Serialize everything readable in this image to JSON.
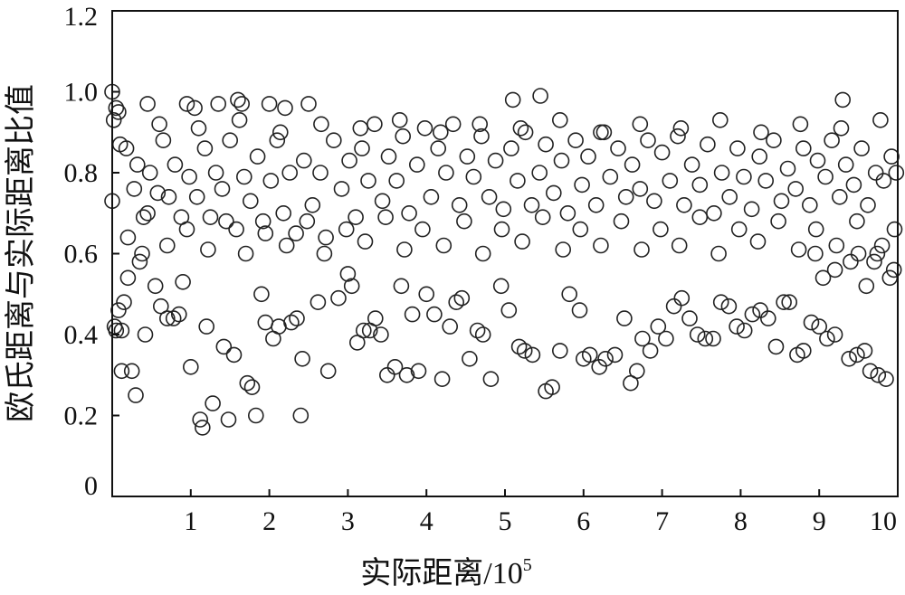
{
  "chart_data": {
    "type": "scatter",
    "xlabel": "实际距离/10",
    "xlabel_sup": "5",
    "ylabel": "欧氏距离与实际距离比值",
    "xlim": [
      0,
      10
    ],
    "ylim": [
      0,
      1.2
    ],
    "xticks": [
      "1",
      "2",
      "3",
      "4",
      "5",
      "6",
      "7",
      "8",
      "9",
      "10"
    ],
    "yticks": [
      "0",
      "0.2",
      "0.4",
      "0.6",
      "0.8",
      "1.0",
      "1.2"
    ],
    "marker": "open-circle",
    "marker_color": "#222222",
    "grid": false,
    "series": [
      {
        "points": [
          [
            0.0,
            1.0
          ],
          [
            0.02,
            0.93
          ],
          [
            0.05,
            0.96
          ],
          [
            0.08,
            0.95
          ],
          [
            0.0,
            0.73
          ],
          [
            0.03,
            0.42
          ],
          [
            0.05,
            0.41
          ],
          [
            0.08,
            0.46
          ],
          [
            0.12,
            0.41
          ],
          [
            0.15,
            0.48
          ],
          [
            0.12,
            0.31
          ],
          [
            0.25,
            0.31
          ],
          [
            0.3,
            0.25
          ],
          [
            0.2,
            0.54
          ],
          [
            0.35,
            0.58
          ],
          [
            0.42,
            0.4
          ],
          [
            0.45,
            0.97
          ],
          [
            0.38,
            0.6
          ],
          [
            0.55,
            0.52
          ],
          [
            0.62,
            0.47
          ],
          [
            0.7,
            0.44
          ],
          [
            0.78,
            0.44
          ],
          [
            0.85,
            0.45
          ],
          [
            0.9,
            0.53
          ],
          [
            0.95,
            0.97
          ],
          [
            1.0,
            0.32
          ],
          [
            1.05,
            0.96
          ],
          [
            1.12,
            0.19
          ],
          [
            1.15,
            0.17
          ],
          [
            1.2,
            0.42
          ],
          [
            1.28,
            0.23
          ],
          [
            1.35,
            0.97
          ],
          [
            1.42,
            0.37
          ],
          [
            1.48,
            0.19
          ],
          [
            1.55,
            0.35
          ],
          [
            1.6,
            0.98
          ],
          [
            1.65,
            0.97
          ],
          [
            1.72,
            0.28
          ],
          [
            1.78,
            0.27
          ],
          [
            1.83,
            0.2
          ],
          [
            1.9,
            0.5
          ],
          [
            1.95,
            0.43
          ],
          [
            2.0,
            0.97
          ],
          [
            2.05,
            0.39
          ],
          [
            2.12,
            0.42
          ],
          [
            2.2,
            0.96
          ],
          [
            2.28,
            0.43
          ],
          [
            2.35,
            0.44
          ],
          [
            2.4,
            0.2
          ],
          [
            2.42,
            0.34
          ],
          [
            2.5,
            0.97
          ],
          [
            2.62,
            0.48
          ],
          [
            2.75,
            0.31
          ],
          [
            2.88,
            0.49
          ],
          [
            3.0,
            0.55
          ],
          [
            3.05,
            0.52
          ],
          [
            3.12,
            0.38
          ],
          [
            3.2,
            0.41
          ],
          [
            3.28,
            0.41
          ],
          [
            3.35,
            0.44
          ],
          [
            3.42,
            0.4
          ],
          [
            3.5,
            0.3
          ],
          [
            3.6,
            0.32
          ],
          [
            3.68,
            0.52
          ],
          [
            3.75,
            0.3
          ],
          [
            3.82,
            0.45
          ],
          [
            3.9,
            0.31
          ],
          [
            4.0,
            0.5
          ],
          [
            4.1,
            0.45
          ],
          [
            4.2,
            0.29
          ],
          [
            4.3,
            0.42
          ],
          [
            4.38,
            0.48
          ],
          [
            4.45,
            0.49
          ],
          [
            4.55,
            0.34
          ],
          [
            4.65,
            0.41
          ],
          [
            4.72,
            0.4
          ],
          [
            4.82,
            0.29
          ],
          [
            4.95,
            0.52
          ],
          [
            5.05,
            0.46
          ],
          [
            5.1,
            0.98
          ],
          [
            5.18,
            0.37
          ],
          [
            5.25,
            0.36
          ],
          [
            5.35,
            0.35
          ],
          [
            5.45,
            0.99
          ],
          [
            5.52,
            0.26
          ],
          [
            5.6,
            0.27
          ],
          [
            5.7,
            0.36
          ],
          [
            5.82,
            0.5
          ],
          [
            5.95,
            0.46
          ],
          [
            6.0,
            0.34
          ],
          [
            6.08,
            0.35
          ],
          [
            6.2,
            0.32
          ],
          [
            6.28,
            0.34
          ],
          [
            6.4,
            0.35
          ],
          [
            6.52,
            0.44
          ],
          [
            6.6,
            0.28
          ],
          [
            6.68,
            0.31
          ],
          [
            6.75,
            0.39
          ],
          [
            6.85,
            0.36
          ],
          [
            6.95,
            0.42
          ],
          [
            7.05,
            0.39
          ],
          [
            7.15,
            0.47
          ],
          [
            7.25,
            0.49
          ],
          [
            7.35,
            0.44
          ],
          [
            7.45,
            0.4
          ],
          [
            7.55,
            0.39
          ],
          [
            7.65,
            0.39
          ],
          [
            7.75,
            0.48
          ],
          [
            7.85,
            0.47
          ],
          [
            7.95,
            0.42
          ],
          [
            8.05,
            0.41
          ],
          [
            8.15,
            0.45
          ],
          [
            8.25,
            0.46
          ],
          [
            8.35,
            0.44
          ],
          [
            8.45,
            0.37
          ],
          [
            8.55,
            0.48
          ],
          [
            8.62,
            0.48
          ],
          [
            8.72,
            0.35
          ],
          [
            8.8,
            0.36
          ],
          [
            8.9,
            0.43
          ],
          [
            9.0,
            0.42
          ],
          [
            9.1,
            0.39
          ],
          [
            9.2,
            0.4
          ],
          [
            9.3,
            0.98
          ],
          [
            9.38,
            0.34
          ],
          [
            9.48,
            0.35
          ],
          [
            9.58,
            0.36
          ],
          [
            9.65,
            0.31
          ],
          [
            9.75,
            0.3
          ],
          [
            9.85,
            0.29
          ],
          [
            9.95,
            0.56
          ],
          [
            9.9,
            0.54
          ],
          [
            9.8,
            0.62
          ],
          [
            9.7,
            0.58
          ],
          [
            9.6,
            0.52
          ],
          [
            9.5,
            0.6
          ],
          [
            9.4,
            0.58
          ],
          [
            9.2,
            0.56
          ],
          [
            9.05,
            0.54
          ],
          [
            8.95,
            0.6
          ],
          [
            0.1,
            0.87
          ],
          [
            0.18,
            0.86
          ],
          [
            0.28,
            0.76
          ],
          [
            0.32,
            0.82
          ],
          [
            0.4,
            0.69
          ],
          [
            0.48,
            0.8
          ],
          [
            0.58,
            0.75
          ],
          [
            0.65,
            0.88
          ],
          [
            0.72,
            0.74
          ],
          [
            0.8,
            0.82
          ],
          [
            0.88,
            0.69
          ],
          [
            0.98,
            0.79
          ],
          [
            1.08,
            0.74
          ],
          [
            1.18,
            0.86
          ],
          [
            1.25,
            0.69
          ],
          [
            1.32,
            0.8
          ],
          [
            1.4,
            0.76
          ],
          [
            1.5,
            0.88
          ],
          [
            1.58,
            0.66
          ],
          [
            1.68,
            0.79
          ],
          [
            1.76,
            0.73
          ],
          [
            1.85,
            0.84
          ],
          [
            1.92,
            0.68
          ],
          [
            2.02,
            0.78
          ],
          [
            2.1,
            0.88
          ],
          [
            2.18,
            0.7
          ],
          [
            2.26,
            0.8
          ],
          [
            2.34,
            0.65
          ],
          [
            2.44,
            0.83
          ],
          [
            2.55,
            0.72
          ],
          [
            2.65,
            0.8
          ],
          [
            2.72,
            0.64
          ],
          [
            2.82,
            0.88
          ],
          [
            2.92,
            0.76
          ],
          [
            3.02,
            0.83
          ],
          [
            3.1,
            0.69
          ],
          [
            3.18,
            0.86
          ],
          [
            3.26,
            0.78
          ],
          [
            3.34,
            0.92
          ],
          [
            3.44,
            0.73
          ],
          [
            3.52,
            0.84
          ],
          [
            3.62,
            0.78
          ],
          [
            3.7,
            0.89
          ],
          [
            3.78,
            0.7
          ],
          [
            3.88,
            0.82
          ],
          [
            3.98,
            0.91
          ],
          [
            4.06,
            0.74
          ],
          [
            4.15,
            0.86
          ],
          [
            4.25,
            0.8
          ],
          [
            4.34,
            0.92
          ],
          [
            4.42,
            0.72
          ],
          [
            4.52,
            0.84
          ],
          [
            4.6,
            0.79
          ],
          [
            4.7,
            0.89
          ],
          [
            4.8,
            0.74
          ],
          [
            4.88,
            0.83
          ],
          [
            4.98,
            0.71
          ],
          [
            5.08,
            0.86
          ],
          [
            5.16,
            0.78
          ],
          [
            5.26,
            0.9
          ],
          [
            5.34,
            0.72
          ],
          [
            5.44,
            0.8
          ],
          [
            5.52,
            0.87
          ],
          [
            5.62,
            0.75
          ],
          [
            5.72,
            0.83
          ],
          [
            5.8,
            0.7
          ],
          [
            5.9,
            0.88
          ],
          [
            5.98,
            0.77
          ],
          [
            6.06,
            0.84
          ],
          [
            6.16,
            0.72
          ],
          [
            6.26,
            0.9
          ],
          [
            6.34,
            0.79
          ],
          [
            6.44,
            0.86
          ],
          [
            6.54,
            0.74
          ],
          [
            6.62,
            0.82
          ],
          [
            6.72,
            0.76
          ],
          [
            6.82,
            0.88
          ],
          [
            6.9,
            0.73
          ],
          [
            7.0,
            0.85
          ],
          [
            7.1,
            0.78
          ],
          [
            7.2,
            0.89
          ],
          [
            7.28,
            0.72
          ],
          [
            7.38,
            0.82
          ],
          [
            7.48,
            0.77
          ],
          [
            7.58,
            0.87
          ],
          [
            7.66,
            0.7
          ],
          [
            7.76,
            0.8
          ],
          [
            7.86,
            0.74
          ],
          [
            7.96,
            0.86
          ],
          [
            8.04,
            0.79
          ],
          [
            8.14,
            0.71
          ],
          [
            8.24,
            0.84
          ],
          [
            8.32,
            0.78
          ],
          [
            8.42,
            0.88
          ],
          [
            8.52,
            0.73
          ],
          [
            8.6,
            0.81
          ],
          [
            8.7,
            0.76
          ],
          [
            8.8,
            0.86
          ],
          [
            8.88,
            0.72
          ],
          [
            8.98,
            0.83
          ],
          [
            9.08,
            0.79
          ],
          [
            9.16,
            0.88
          ],
          [
            9.26,
            0.74
          ],
          [
            9.34,
            0.82
          ],
          [
            9.44,
            0.77
          ],
          [
            9.54,
            0.86
          ],
          [
            9.62,
            0.72
          ],
          [
            9.72,
            0.8
          ],
          [
            9.82,
            0.78
          ],
          [
            9.92,
            0.84
          ],
          [
            0.2,
            0.64
          ],
          [
            0.45,
            0.7
          ],
          [
            0.7,
            0.62
          ],
          [
            0.95,
            0.66
          ],
          [
            1.22,
            0.61
          ],
          [
            1.45,
            0.68
          ],
          [
            1.7,
            0.6
          ],
          [
            1.95,
            0.65
          ],
          [
            2.22,
            0.62
          ],
          [
            2.48,
            0.68
          ],
          [
            2.7,
            0.6
          ],
          [
            2.98,
            0.66
          ],
          [
            3.22,
            0.63
          ],
          [
            3.48,
            0.69
          ],
          [
            3.72,
            0.61
          ],
          [
            3.95,
            0.66
          ],
          [
            4.22,
            0.62
          ],
          [
            4.48,
            0.68
          ],
          [
            4.72,
            0.6
          ],
          [
            4.96,
            0.66
          ],
          [
            5.22,
            0.63
          ],
          [
            5.48,
            0.69
          ],
          [
            5.74,
            0.61
          ],
          [
            5.96,
            0.66
          ],
          [
            6.22,
            0.62
          ],
          [
            6.48,
            0.68
          ],
          [
            6.74,
            0.61
          ],
          [
            6.98,
            0.66
          ],
          [
            7.22,
            0.62
          ],
          [
            7.48,
            0.69
          ],
          [
            7.72,
            0.6
          ],
          [
            7.98,
            0.66
          ],
          [
            8.22,
            0.63
          ],
          [
            8.48,
            0.68
          ],
          [
            8.74,
            0.61
          ],
          [
            8.96,
            0.66
          ],
          [
            9.22,
            0.62
          ],
          [
            9.48,
            0.68
          ],
          [
            9.74,
            0.6
          ],
          [
            9.96,
            0.66
          ],
          [
            0.6,
            0.92
          ],
          [
            1.1,
            0.91
          ],
          [
            1.62,
            0.93
          ],
          [
            2.14,
            0.9
          ],
          [
            2.66,
            0.92
          ],
          [
            3.16,
            0.91
          ],
          [
            3.66,
            0.93
          ],
          [
            4.18,
            0.9
          ],
          [
            4.68,
            0.92
          ],
          [
            5.2,
            0.91
          ],
          [
            5.7,
            0.93
          ],
          [
            6.22,
            0.9
          ],
          [
            6.72,
            0.92
          ],
          [
            7.24,
            0.91
          ],
          [
            7.74,
            0.93
          ],
          [
            8.26,
            0.9
          ],
          [
            8.76,
            0.92
          ],
          [
            9.28,
            0.91
          ],
          [
            9.78,
            0.93
          ],
          [
            9.98,
            0.8
          ]
        ]
      }
    ]
  }
}
